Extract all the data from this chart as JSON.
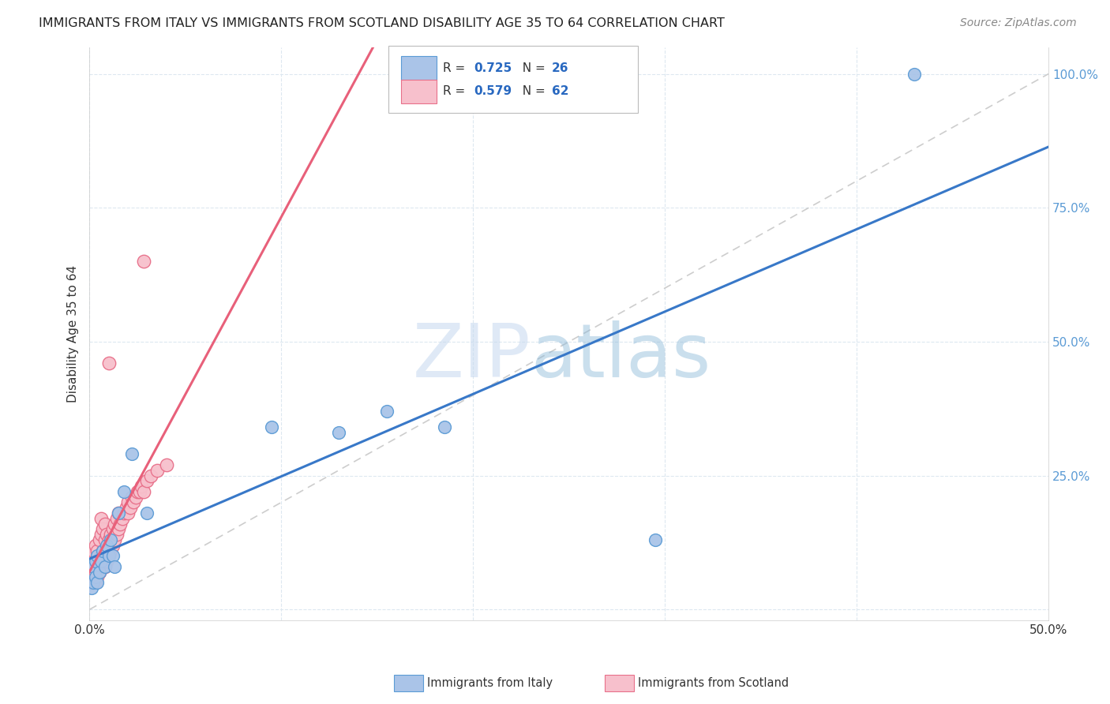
{
  "title": "IMMIGRANTS FROM ITALY VS IMMIGRANTS FROM SCOTLAND DISABILITY AGE 35 TO 64 CORRELATION CHART",
  "source": "Source: ZipAtlas.com",
  "ylabel": "Disability Age 35 to 64",
  "xlim": [
    0.0,
    0.5
  ],
  "ylim": [
    -0.02,
    1.05
  ],
  "italy_color": "#aac4e8",
  "italy_edge_color": "#5b9bd5",
  "scotland_color": "#f7c0cc",
  "scotland_edge_color": "#e8708a",
  "italy_line_color": "#3878c8",
  "scotland_line_color": "#e8607a",
  "diag_line_color": "#c8c8c8",
  "legend_italy_R": "0.725",
  "legend_italy_N": "26",
  "legend_scotland_R": "0.579",
  "legend_scotland_N": "62",
  "italy_x": [
    0.001,
    0.002,
    0.002,
    0.003,
    0.003,
    0.004,
    0.004,
    0.005,
    0.006,
    0.007,
    0.008,
    0.009,
    0.01,
    0.011,
    0.012,
    0.013,
    0.015,
    0.018,
    0.022,
    0.03,
    0.095,
    0.13,
    0.155,
    0.185,
    0.295,
    0.43
  ],
  "italy_y": [
    0.04,
    0.05,
    0.08,
    0.06,
    0.09,
    0.05,
    0.1,
    0.07,
    0.09,
    0.11,
    0.08,
    0.12,
    0.1,
    0.13,
    0.1,
    0.08,
    0.18,
    0.22,
    0.29,
    0.18,
    0.34,
    0.33,
    0.37,
    0.34,
    0.13,
    1.0
  ],
  "scotland_x": [
    0.001,
    0.001,
    0.001,
    0.002,
    0.002,
    0.002,
    0.003,
    0.003,
    0.003,
    0.003,
    0.004,
    0.004,
    0.004,
    0.005,
    0.005,
    0.005,
    0.006,
    0.006,
    0.006,
    0.006,
    0.007,
    0.007,
    0.007,
    0.008,
    0.008,
    0.008,
    0.008,
    0.009,
    0.009,
    0.009,
    0.01,
    0.01,
    0.011,
    0.011,
    0.012,
    0.012,
    0.013,
    0.013,
    0.014,
    0.014,
    0.015,
    0.015,
    0.016,
    0.017,
    0.018,
    0.019,
    0.02,
    0.02,
    0.021,
    0.022,
    0.023,
    0.024,
    0.025,
    0.026,
    0.027,
    0.028,
    0.03,
    0.032,
    0.035,
    0.04,
    0.01,
    0.028
  ],
  "scotland_y": [
    0.05,
    0.07,
    0.1,
    0.06,
    0.08,
    0.11,
    0.05,
    0.07,
    0.09,
    0.12,
    0.06,
    0.08,
    0.11,
    0.07,
    0.09,
    0.13,
    0.08,
    0.1,
    0.14,
    0.17,
    0.09,
    0.11,
    0.15,
    0.08,
    0.1,
    0.13,
    0.16,
    0.09,
    0.11,
    0.14,
    0.1,
    0.13,
    0.11,
    0.14,
    0.12,
    0.15,
    0.13,
    0.16,
    0.14,
    0.17,
    0.15,
    0.18,
    0.16,
    0.17,
    0.18,
    0.19,
    0.18,
    0.2,
    0.19,
    0.21,
    0.2,
    0.21,
    0.22,
    0.22,
    0.23,
    0.22,
    0.24,
    0.25,
    0.26,
    0.27,
    0.46,
    0.65
  ],
  "watermark_zip": "ZIP",
  "watermark_atlas": "atlas",
  "background_color": "#ffffff",
  "grid_color": "#dde8f0"
}
